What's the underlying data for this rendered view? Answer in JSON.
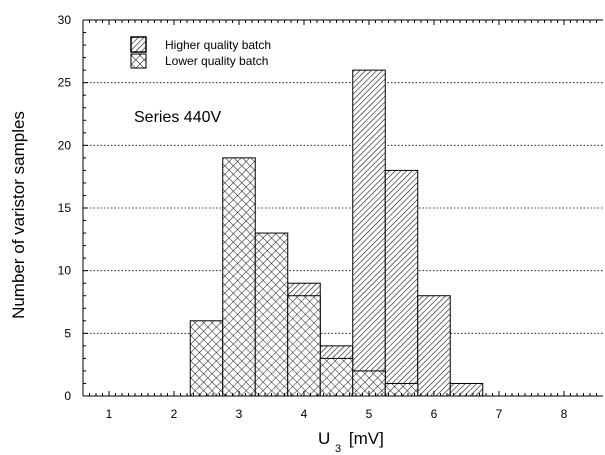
{
  "chart_data": {
    "type": "bar",
    "xlabel_main": "U",
    "xlabel_sub": "3",
    "xlabel_unit": "[mV]",
    "ylabel": "Number of varistor samples",
    "annotation": "Series 440V",
    "xlim": [
      0.6,
      8.6
    ],
    "ylim": [
      0,
      30
    ],
    "xticks": [
      "1",
      "2",
      "3",
      "4",
      "5",
      "6",
      "7",
      "8"
    ],
    "yticks": [
      "0",
      "5",
      "10",
      "15",
      "20",
      "25",
      "30"
    ],
    "grid": "horizontal dotted",
    "legend_position": "top-left",
    "bin_edges": [
      2.25,
      2.75,
      3.25,
      3.75,
      4.25,
      4.75,
      5.25,
      5.75,
      6.25,
      6.75
    ],
    "series": [
      {
        "name": "Higher quality batch",
        "pattern": "diagonal-hatch",
        "values": [
          0,
          0,
          0,
          9,
          4,
          26,
          18,
          8,
          1
        ]
      },
      {
        "name": "Lower quality batch",
        "pattern": "cross-hatch",
        "values": [
          6,
          19,
          13,
          8,
          3,
          2,
          1,
          0,
          0
        ]
      }
    ]
  }
}
